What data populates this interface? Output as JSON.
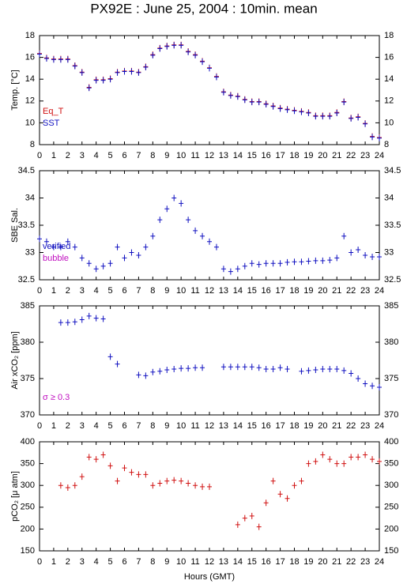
{
  "title": "PX92E : June 25, 2004 : 10min. mean",
  "chart_data": [
    {
      "type": "scatter",
      "ylabel": "Temp. [°C]",
      "x": [
        0,
        0.5,
        1,
        1.5,
        2,
        2.5,
        3,
        3.5,
        4,
        4.5,
        5,
        5.5,
        6,
        6.5,
        7,
        7.5,
        8,
        8.5,
        9,
        9.5,
        10,
        10.5,
        11,
        11.5,
        12,
        12.5,
        13,
        13.5,
        14,
        14.5,
        15,
        15.5,
        16,
        16.5,
        17,
        17.5,
        18,
        18.5,
        19,
        19.5,
        20,
        20.5,
        21,
        21.5,
        22,
        22.5,
        23,
        23.5,
        24
      ],
      "xlim": [
        0,
        24
      ],
      "xticks": [
        0,
        1,
        2,
        3,
        4,
        5,
        6,
        7,
        8,
        9,
        10,
        11,
        12,
        13,
        14,
        15,
        16,
        17,
        18,
        19,
        20,
        21,
        22,
        23,
        24
      ],
      "ylim": [
        8,
        18
      ],
      "yticks": [
        8,
        10,
        12,
        14,
        16,
        18
      ],
      "series": [
        {
          "name": "Eq_T",
          "color": "#d01010",
          "values": [
            16.35,
            15.95,
            15.85,
            15.85,
            15.85,
            15.25,
            14.65,
            13.25,
            13.95,
            13.95,
            14.05,
            14.65,
            14.75,
            14.75,
            14.65,
            15.15,
            16.25,
            16.85,
            17.05,
            17.15,
            17.15,
            16.55,
            16.25,
            15.65,
            15.05,
            14.25,
            12.85,
            12.55,
            12.45,
            12.15,
            11.95,
            11.95,
            11.75,
            11.55,
            11.35,
            11.25,
            11.15,
            11.05,
            10.95,
            10.65,
            10.65,
            10.65,
            10.95,
            11.95,
            10.45,
            10.55,
            9.95,
            8.75,
            8.65
          ]
        },
        {
          "name": "SST",
          "color": "#1010c0",
          "values": [
            16.3,
            15.9,
            15.8,
            15.8,
            15.8,
            15.2,
            14.6,
            13.2,
            13.9,
            13.9,
            14.0,
            14.6,
            14.7,
            14.7,
            14.6,
            15.1,
            16.2,
            16.8,
            17.0,
            17.1,
            17.1,
            16.5,
            16.2,
            15.6,
            15.0,
            14.2,
            12.8,
            12.5,
            12.4,
            12.1,
            11.9,
            11.9,
            11.7,
            11.5,
            11.3,
            11.2,
            11.1,
            11.0,
            10.9,
            10.6,
            10.6,
            10.6,
            10.9,
            11.9,
            10.4,
            10.5,
            9.9,
            8.7,
            8.6
          ]
        }
      ]
    },
    {
      "type": "scatter",
      "ylabel": "SBE Sal.",
      "x": [
        0,
        0.5,
        1,
        1.5,
        2,
        2.5,
        3,
        3.5,
        4,
        4.5,
        5,
        5.5,
        6,
        6.5,
        7,
        7.5,
        8,
        8.5,
        9,
        9.5,
        10,
        10.5,
        11,
        11.5,
        12,
        12.5,
        13,
        13.5,
        14,
        14.5,
        15,
        15.5,
        16,
        16.5,
        17,
        17.5,
        18,
        18.5,
        19,
        19.5,
        20,
        20.5,
        21,
        21.5,
        22,
        22.5,
        23,
        23.5,
        24
      ],
      "xlim": [
        0,
        24
      ],
      "xticks": [
        0,
        1,
        2,
        3,
        4,
        5,
        6,
        7,
        8,
        9,
        10,
        11,
        12,
        13,
        14,
        15,
        16,
        17,
        18,
        19,
        20,
        21,
        22,
        23,
        24
      ],
      "ylim": [
        32.5,
        34.5
      ],
      "yticks": [
        32.5,
        33,
        33.5,
        34,
        34.5
      ],
      "series": [
        {
          "name": "verified",
          "color": "#1010c0",
          "values": [
            33.25,
            33.2,
            33.1,
            33.1,
            33.2,
            33.1,
            32.9,
            32.8,
            32.7,
            32.75,
            32.8,
            33.1,
            32.9,
            33.0,
            32.95,
            33.1,
            33.3,
            33.6,
            33.8,
            34.0,
            33.9,
            33.6,
            33.4,
            33.3,
            33.2,
            33.1,
            32.7,
            32.65,
            32.7,
            32.75,
            32.8,
            32.78,
            32.8,
            32.8,
            32.8,
            32.82,
            32.83,
            32.83,
            32.84,
            32.85,
            32.85,
            32.86,
            32.9,
            33.3,
            33.0,
            33.05,
            32.95,
            32.92,
            32.92
          ]
        }
      ],
      "legend": [
        {
          "label": "bubble",
          "color": "#c010c0"
        }
      ]
    },
    {
      "type": "scatter",
      "ylabel": "Air xCO₂ [ppm]",
      "x": [
        0,
        0.5,
        1,
        1.5,
        2,
        2.5,
        3,
        3.5,
        4,
        4.5,
        5,
        5.5,
        6,
        6.5,
        7,
        7.5,
        8,
        8.5,
        9,
        9.5,
        10,
        10.5,
        11,
        11.5,
        12,
        12.5,
        13,
        13.5,
        14,
        14.5,
        15,
        15.5,
        16,
        16.5,
        17,
        17.5,
        18,
        18.5,
        19,
        19.5,
        20,
        20.5,
        21,
        21.5,
        22,
        22.5,
        23,
        23.5,
        24
      ],
      "xlim": [
        0,
        24
      ],
      "xticks": [
        0,
        1,
        2,
        3,
        4,
        5,
        6,
        7,
        8,
        9,
        10,
        11,
        12,
        13,
        14,
        15,
        16,
        17,
        18,
        19,
        20,
        21,
        22,
        23,
        24
      ],
      "ylim": [
        370,
        385
      ],
      "yticks": [
        370,
        375,
        380,
        385
      ],
      "series": [
        {
          "name": null,
          "color": "#1010c0",
          "values": [
            null,
            null,
            null,
            382.7,
            382.7,
            382.8,
            383.1,
            383.6,
            383.3,
            383.2,
            378.0,
            377.0,
            null,
            null,
            375.5,
            375.4,
            375.9,
            376.0,
            376.2,
            376.3,
            376.4,
            376.4,
            376.5,
            376.5,
            null,
            null,
            376.6,
            376.6,
            376.6,
            376.6,
            376.6,
            376.5,
            376.3,
            376.3,
            376.5,
            376.3,
            null,
            376.0,
            376.1,
            376.2,
            376.3,
            376.3,
            376.3,
            376.1,
            375.7,
            375.0,
            374.3,
            374.0,
            373.8
          ]
        }
      ],
      "annotation": {
        "text": "σ ≥ 0.3",
        "color": "#c010c0"
      }
    },
    {
      "type": "scatter",
      "ylabel": "pCO₂ [μ atm]",
      "xlabel": "Hours (GMT)",
      "x": [
        0,
        0.5,
        1,
        1.5,
        2,
        2.5,
        3,
        3.5,
        4,
        4.5,
        5,
        5.5,
        6,
        6.5,
        7,
        7.5,
        8,
        8.5,
        9,
        9.5,
        10,
        10.5,
        11,
        11.5,
        12,
        12.5,
        13,
        13.5,
        14,
        14.5,
        15,
        15.5,
        16,
        16.5,
        17,
        17.5,
        18,
        18.5,
        19,
        19.5,
        20,
        20.5,
        21,
        21.5,
        22,
        22.5,
        23,
        23.5,
        24
      ],
      "xlim": [
        0,
        24
      ],
      "xticks": [
        0,
        1,
        2,
        3,
        4,
        5,
        6,
        7,
        8,
        9,
        10,
        11,
        12,
        13,
        14,
        15,
        16,
        17,
        18,
        19,
        20,
        21,
        22,
        23,
        24
      ],
      "ylim": [
        150,
        400
      ],
      "yticks": [
        150,
        200,
        250,
        300,
        350,
        400
      ],
      "series": [
        {
          "name": null,
          "color": "#d01010",
          "values": [
            null,
            null,
            null,
            300,
            295,
            300,
            320,
            365,
            360,
            370,
            345,
            310,
            340,
            330,
            325,
            325,
            300,
            305,
            310,
            312,
            310,
            305,
            300,
            297,
            297,
            null,
            null,
            null,
            210,
            225,
            230,
            205,
            260,
            310,
            280,
            270,
            300,
            310,
            350,
            355,
            370,
            360,
            350,
            350,
            365,
            365,
            370,
            360,
            355
          ]
        }
      ]
    }
  ]
}
